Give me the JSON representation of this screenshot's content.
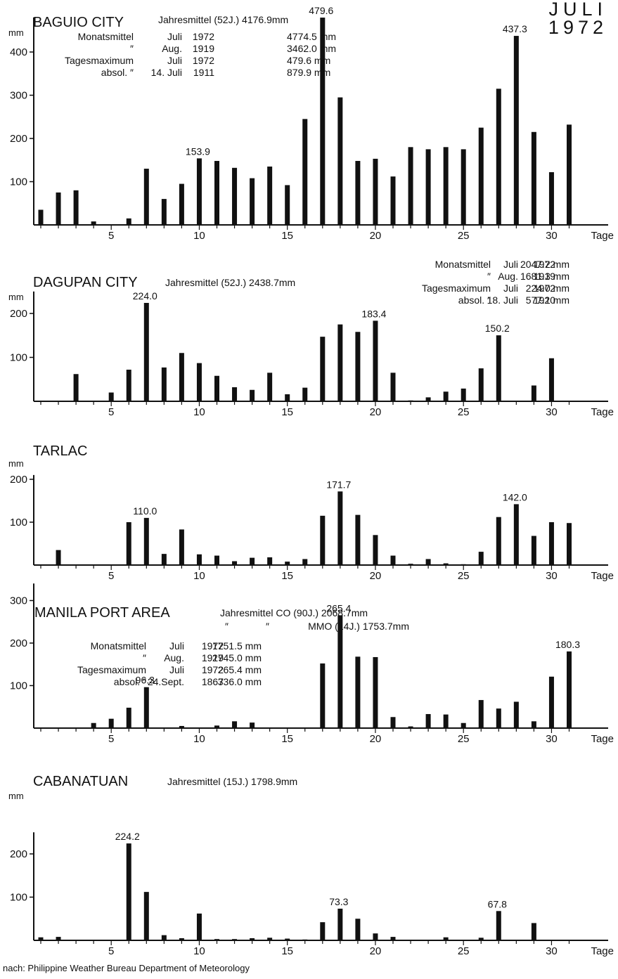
{
  "figure": {
    "title_line1": "JULI",
    "title_line2": "1972",
    "source": "nach: Philippine Weather Bureau Department of Meteorology"
  },
  "chart_data": [
    {
      "type": "bar",
      "title": "BAGUIO CITY",
      "subtitle": "Jahresmittel (52J.) 4176.9mm",
      "xlabel": "Tage",
      "ylabel": "mm",
      "ylim": [
        0,
        480
      ],
      "yticks": [
        100,
        200,
        300,
        400
      ],
      "xticks": [
        5,
        10,
        15,
        20,
        25,
        30
      ],
      "x": [
        1,
        2,
        3,
        4,
        5,
        6,
        7,
        8,
        9,
        10,
        11,
        12,
        13,
        14,
        15,
        16,
        17,
        18,
        19,
        20,
        21,
        22,
        23,
        24,
        25,
        26,
        27,
        28,
        29,
        30,
        31
      ],
      "values": [
        35,
        75,
        80,
        8,
        0,
        15,
        130,
        60,
        95,
        153.9,
        148,
        132,
        108,
        135,
        92,
        245,
        479.6,
        295,
        148,
        153,
        112,
        180,
        175,
        180,
        175,
        225,
        315,
        437.3,
        215,
        122,
        232
      ],
      "value_labels": [
        {
          "x": 10,
          "text": "153.9"
        },
        {
          "x": 17,
          "text": "479.6"
        },
        {
          "x": 28,
          "text": "437.3"
        }
      ],
      "annotations": [
        {
          "label": "Monatsmittel",
          "month": "Juli",
          "year": "1972",
          "value": "4774.5 mm"
        },
        {
          "label": "″",
          "month": "Aug.",
          "year": "1919",
          "value": "3462.0 mm"
        },
        {
          "label": "Tagesmaximum",
          "month": "Juli",
          "year": "1972",
          "value": "479.6 mm"
        },
        {
          "label": "absol. ″",
          "month": "14. Juli",
          "year": "1911",
          "value": "879.9 mm"
        }
      ]
    },
    {
      "type": "bar",
      "title": "DAGUPAN CITY",
      "subtitle": "Jahresmittel (52J.) 2438.7mm",
      "xlabel": "Tage",
      "ylabel": "mm",
      "ylim": [
        0,
        250
      ],
      "yticks": [
        100,
        200
      ],
      "xticks": [
        5,
        10,
        15,
        20,
        25,
        30
      ],
      "x": [
        3,
        5,
        6,
        7,
        8,
        9,
        10,
        11,
        12,
        13,
        14,
        15,
        16,
        17,
        18,
        19,
        20,
        21,
        22,
        23,
        24,
        25,
        26,
        27,
        29,
        30
      ],
      "values": [
        62,
        20,
        72,
        224.0,
        77,
        110,
        87,
        58,
        32,
        26,
        65,
        16,
        31,
        147,
        175,
        158,
        183.4,
        65,
        2,
        9,
        22,
        29,
        75,
        150.2,
        36,
        98
      ],
      "value_labels": [
        {
          "x": 7,
          "text": "224.0"
        },
        {
          "x": 20,
          "text": "183.4"
        },
        {
          "x": 27,
          "text": "150.2"
        }
      ],
      "annotations": [
        {
          "label": "Monatsmittel",
          "month": "Juli",
          "year": "1972",
          "value": "2047.2 mm"
        },
        {
          "label": "″",
          "month": "Aug.",
          "year": "1919",
          "value": "1681.3 mm"
        },
        {
          "label": "Tagesmaximum",
          "month": "Juli",
          "year": "1972",
          "value": "224.0 mm"
        },
        {
          "label": "absol. ″",
          "month": "18. Juli",
          "year": "1920",
          "value": "577.1 mm"
        }
      ]
    },
    {
      "type": "bar",
      "title": "TARLAC",
      "subtitle": "",
      "xlabel": "Tage",
      "ylabel": "mm",
      "ylim": [
        0,
        210
      ],
      "yticks": [
        100,
        200
      ],
      "xticks": [
        5,
        10,
        15,
        20,
        25,
        30
      ],
      "x": [
        2,
        6,
        7,
        8,
        9,
        10,
        11,
        12,
        13,
        14,
        15,
        16,
        17,
        18,
        19,
        20,
        21,
        22,
        23,
        24,
        25,
        26,
        27,
        28,
        29,
        30,
        31
      ],
      "values": [
        35,
        100,
        110.0,
        26,
        83,
        25,
        22,
        9,
        17,
        18,
        8,
        14,
        115,
        171.7,
        117,
        70,
        22,
        3,
        14,
        4,
        2,
        31,
        112,
        142.0,
        68,
        100,
        98
      ],
      "value_labels": [
        {
          "x": 7,
          "text": "110.0"
        },
        {
          "x": 18,
          "text": "171.7"
        },
        {
          "x": 28,
          "text": "142.0"
        }
      ],
      "annotations": []
    },
    {
      "type": "bar",
      "title": "MANILA PORT AREA",
      "subtitle": "Jahresmittel CO (90J.) 2068.7mm",
      "subtitle2": "MMO (14J.) 1753.7mm",
      "xlabel": "Tage",
      "ylabel": "",
      "ylim": [
        0,
        340
      ],
      "yticks": [
        100,
        200,
        300
      ],
      "xticks": [
        5,
        10,
        15,
        20,
        25,
        30
      ],
      "x": [
        4,
        5,
        6,
        7,
        9,
        11,
        12,
        13,
        17,
        18,
        19,
        20,
        21,
        22,
        23,
        24,
        25,
        26,
        27,
        28,
        29,
        30,
        31
      ],
      "values": [
        12,
        22,
        48,
        96.3,
        5,
        6,
        16,
        13,
        152,
        265.4,
        168,
        167,
        26,
        4,
        33,
        32,
        12,
        66,
        46,
        62,
        16,
        121,
        180.3
      ],
      "value_labels": [
        {
          "x": 7,
          "text": "96.3"
        },
        {
          "x": 18,
          "text": "265.4"
        },
        {
          "x": 31,
          "text": "180.3"
        }
      ],
      "annotations": [
        {
          "label": "Monatsmittel",
          "month": "Juli",
          "year": "1972",
          "value": "1751.5 mm"
        },
        {
          "label": "″",
          "month": "Aug.",
          "year": "1919",
          "value": "2745.0 mm"
        },
        {
          "label": "Tagesmaximum",
          "month": "Juli",
          "year": "1972",
          "value": "265.4 mm"
        },
        {
          "label": "absol. ″",
          "month": "24.Sept.",
          "year": "1867",
          "value": "336.0 mm"
        }
      ]
    },
    {
      "type": "bar",
      "title": "CABANATUAN",
      "subtitle": "Jahresmittel (15J.) 1798.9mm",
      "xlabel": "Tage",
      "ylabel": "mm",
      "ylim": [
        0,
        250
      ],
      "yticks": [
        100,
        200
      ],
      "xticks": [
        5,
        10,
        15,
        20,
        25,
        30
      ],
      "x": [
        1,
        2,
        6,
        7,
        8,
        9,
        10,
        11,
        12,
        13,
        14,
        15,
        16,
        17,
        18,
        19,
        20,
        21,
        24,
        26,
        27,
        29
      ],
      "values": [
        7,
        8,
        224.2,
        112,
        12,
        5,
        62,
        3,
        3,
        5,
        6,
        4,
        2,
        42,
        73.3,
        50,
        16,
        8,
        7,
        6,
        67.8,
        40
      ],
      "value_labels": [
        {
          "x": 6,
          "text": "224.2"
        },
        {
          "x": 18,
          "text": "73.3"
        },
        {
          "x": 27,
          "text": "67.8"
        }
      ],
      "annotations": []
    }
  ]
}
